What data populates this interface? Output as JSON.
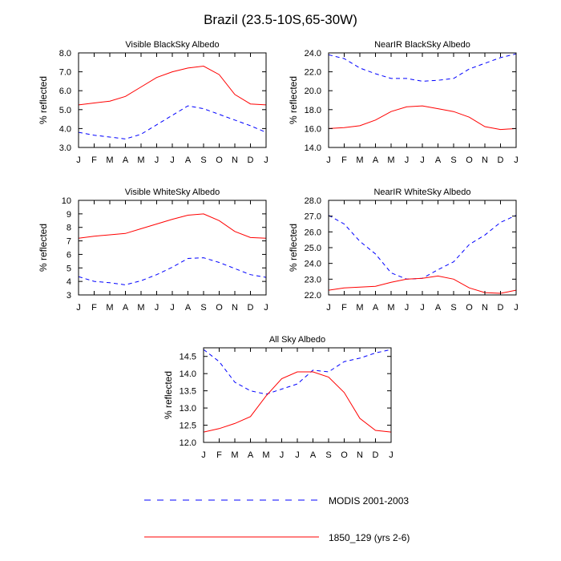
{
  "title": "Brazil (23.5-10S,65-30W)",
  "months": [
    "J",
    "F",
    "M",
    "A",
    "M",
    "J",
    "J",
    "A",
    "S",
    "O",
    "N",
    "D",
    "J"
  ],
  "colors": {
    "modis": "#0000ff",
    "model": "#ff0000"
  },
  "legend": {
    "placement": "bottom-center",
    "modis_label": "MODIS 2001-2003",
    "model_label": "1850_129 (yrs 2-6)"
  },
  "chart_data": [
    {
      "type": "line",
      "title": "Visible BlackSky Albedo",
      "ylabel": "% reflected",
      "ylim": [
        3.0,
        8.0
      ],
      "yticks": [
        "3.0",
        "4.0",
        "5.0",
        "6.0",
        "7.0",
        "8.0"
      ],
      "x": [
        "J",
        "F",
        "M",
        "A",
        "M",
        "J",
        "J",
        "A",
        "S",
        "O",
        "N",
        "D",
        "J"
      ],
      "series": [
        {
          "name": "MODIS 2001-2003",
          "style": "dashed",
          "values": [
            3.8,
            3.65,
            3.55,
            3.45,
            3.7,
            4.2,
            4.7,
            5.2,
            5.05,
            4.75,
            4.45,
            4.15,
            3.8
          ]
        },
        {
          "name": "1850_129 (yrs 2-6)",
          "style": "solid",
          "values": [
            5.25,
            5.35,
            5.45,
            5.7,
            6.2,
            6.7,
            7.0,
            7.2,
            7.3,
            6.85,
            5.8,
            5.3,
            5.25
          ]
        }
      ]
    },
    {
      "type": "line",
      "title": "NearIR BlackSky Albedo",
      "ylabel": "% reflected",
      "ylim": [
        14.0,
        24.0
      ],
      "yticks": [
        "14.0",
        "16.0",
        "18.0",
        "20.0",
        "22.0",
        "24.0"
      ],
      "x": [
        "J",
        "F",
        "M",
        "A",
        "M",
        "J",
        "J",
        "A",
        "S",
        "O",
        "N",
        "D",
        "J"
      ],
      "series": [
        {
          "name": "MODIS 2001-2003",
          "style": "dashed",
          "values": [
            23.8,
            23.4,
            22.4,
            21.8,
            21.3,
            21.3,
            21.0,
            21.1,
            21.3,
            22.3,
            22.9,
            23.5,
            23.9
          ]
        },
        {
          "name": "1850_129 (yrs 2-6)",
          "style": "solid",
          "values": [
            16.0,
            16.1,
            16.3,
            16.9,
            17.8,
            18.3,
            18.4,
            18.1,
            17.8,
            17.2,
            16.2,
            15.9,
            16.0
          ]
        }
      ]
    },
    {
      "type": "line",
      "title": "Visible WhiteSky Albedo",
      "ylabel": "% reflected",
      "ylim": [
        3,
        10
      ],
      "yticks": [
        "3",
        "4",
        "5",
        "6",
        "7",
        "8",
        "9",
        "10"
      ],
      "x": [
        "J",
        "F",
        "M",
        "A",
        "M",
        "J",
        "J",
        "A",
        "S",
        "O",
        "N",
        "D",
        "J"
      ],
      "series": [
        {
          "name": "MODIS 2001-2003",
          "style": "dashed",
          "values": [
            4.35,
            4.0,
            3.9,
            3.75,
            4.05,
            4.5,
            5.05,
            5.7,
            5.75,
            5.4,
            4.95,
            4.5,
            4.3
          ]
        },
        {
          "name": "1850_129 (yrs 2-6)",
          "style": "solid",
          "values": [
            7.2,
            7.35,
            7.45,
            7.55,
            7.9,
            8.25,
            8.6,
            8.9,
            9.0,
            8.5,
            7.7,
            7.25,
            7.2
          ]
        }
      ]
    },
    {
      "type": "line",
      "title": "NearIR WhiteSky Albedo",
      "ylabel": "% reflected",
      "ylim": [
        22.0,
        28.0
      ],
      "yticks": [
        "22.0",
        "23.0",
        "24.0",
        "25.0",
        "26.0",
        "27.0",
        "28.0"
      ],
      "x": [
        "J",
        "F",
        "M",
        "A",
        "M",
        "J",
        "J",
        "A",
        "S",
        "O",
        "N",
        "D",
        "J"
      ],
      "series": [
        {
          "name": "MODIS 2001-2003",
          "style": "dashed",
          "values": [
            27.05,
            26.5,
            25.4,
            24.6,
            23.4,
            23.0,
            23.05,
            23.6,
            24.1,
            25.2,
            25.8,
            26.6,
            27.05
          ]
        },
        {
          "name": "1850_129 (yrs 2-6)",
          "style": "solid",
          "values": [
            22.3,
            22.45,
            22.5,
            22.55,
            22.8,
            23.0,
            23.05,
            23.2,
            23.0,
            22.45,
            22.15,
            22.1,
            22.3
          ]
        }
      ]
    },
    {
      "type": "line",
      "title": "All Sky Albedo",
      "ylabel": "% reflected",
      "ylim": [
        12.0,
        14.75
      ],
      "yticks": [
        "12.0",
        "12.5",
        "13.0",
        "13.5",
        "14.0",
        "14.5"
      ],
      "x": [
        "J",
        "F",
        "M",
        "A",
        "M",
        "J",
        "J",
        "A",
        "S",
        "O",
        "N",
        "D",
        "J"
      ],
      "series": [
        {
          "name": "MODIS 2001-2003",
          "style": "dashed",
          "values": [
            14.7,
            14.35,
            13.75,
            13.5,
            13.4,
            13.55,
            13.7,
            14.1,
            14.05,
            14.35,
            14.45,
            14.6,
            14.7
          ]
        },
        {
          "name": "1850_129 (yrs 2-6)",
          "style": "solid",
          "values": [
            12.3,
            12.4,
            12.55,
            12.75,
            13.35,
            13.85,
            14.05,
            14.05,
            13.9,
            13.45,
            12.7,
            12.35,
            12.3
          ]
        }
      ]
    }
  ]
}
